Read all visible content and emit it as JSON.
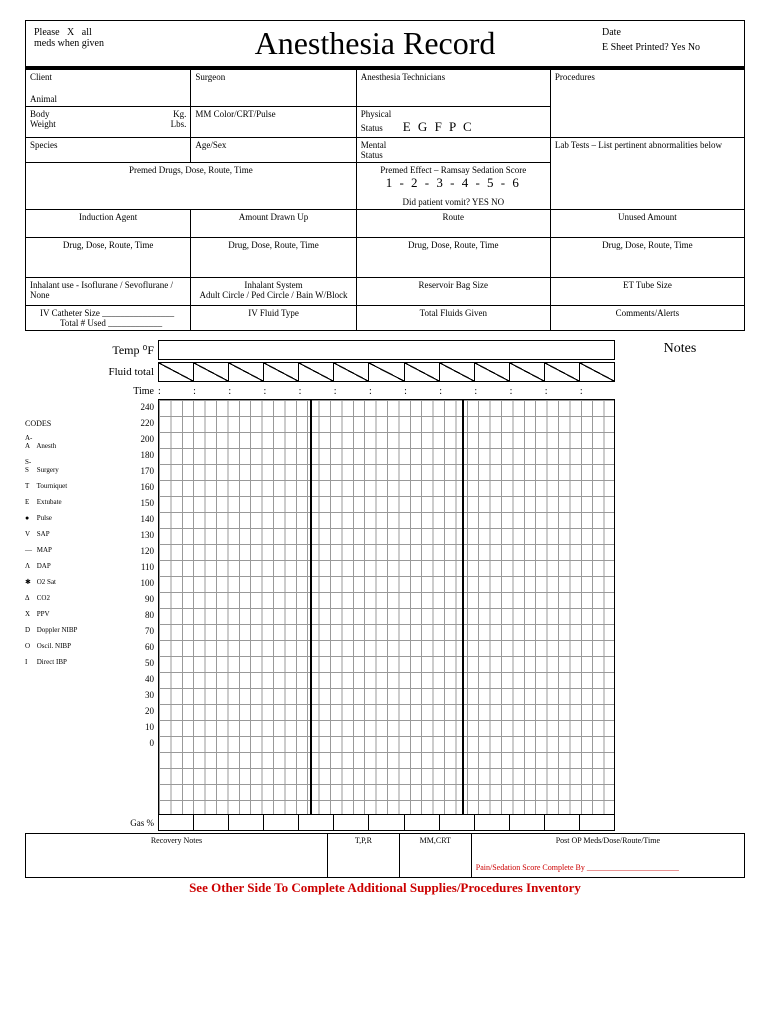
{
  "header": {
    "instruction1": "Please",
    "instruction2": "X",
    "instruction3": "all",
    "instruction4": "meds when given",
    "title": "Anesthesia Record",
    "date": "Date",
    "printed": "E Sheet Printed?  Yes  No"
  },
  "row1": {
    "client": "Client",
    "animal": "Animal",
    "surgeon": "Surgeon",
    "anesth_tech": "Anesthesia Technicians",
    "procedures": "Procedures"
  },
  "row2": {
    "body": "Body",
    "weight": "Weight",
    "kg": "Kg.",
    "lbs": "Lbs.",
    "mm": "MM Color/CRT/Pulse",
    "phys": "Physical",
    "status": "Status",
    "egfpc": "E G F P C"
  },
  "row3": {
    "species": "Species",
    "agesex": "Age/Sex",
    "mental": "Mental",
    "status": "Status",
    "labtests": "Lab Tests – List pertinent abnormalities below"
  },
  "row4": {
    "premed": "Premed Drugs, Dose, Route, Time",
    "effect": "Premed Effect – Ramsay Sedation Score",
    "scale": "1 - 2 - 3 - 4 - 5 - 6",
    "vomit": "Did patient vomit?   YES   NO"
  },
  "row5": {
    "induction": "Induction Agent",
    "amount": "Amount Drawn Up",
    "route": "Route",
    "unused": "Unused Amount"
  },
  "row6": {
    "drug": "Drug, Dose, Route, Time"
  },
  "row7": {
    "inhalant": "Inhalant use - Isoflurane / Sevoflurane / None",
    "system": "Inhalant System",
    "system2": "Adult Circle / Ped Circle / Bain W/Block",
    "reservoir": "Reservoir Bag Size",
    "et": "ET Tube Size"
  },
  "row8": {
    "iv_cath": "IV Catheter Size ________________",
    "total_used": "Total # Used ____________",
    "fluid_type": "IV Fluid Type",
    "fluids_given": "Total Fluids Given",
    "comments": "Comments/Alerts"
  },
  "monitor": {
    "temp": "Temp ⁰F",
    "fluid": "Fluid total",
    "time": "Time",
    "gas": "Gas %",
    "notes": "Notes",
    "yvals": [
      "240",
      "220",
      "200",
      "180",
      "170",
      "160",
      "150",
      "140",
      "130",
      "120",
      "110",
      "100",
      "90",
      "80",
      "70",
      "60",
      "50",
      "40",
      "30",
      "20",
      "10",
      "0"
    ],
    "y_heights": [
      16,
      16,
      16,
      16,
      16,
      16,
      16,
      16,
      16,
      16,
      16,
      16,
      16,
      16,
      16,
      16,
      16,
      16,
      16,
      16,
      16,
      16
    ]
  },
  "codes": {
    "title": "CODES",
    "items": [
      {
        "sym": "A-A",
        "txt": "Anesth"
      },
      {
        "sym": "S-S",
        "txt": "Surgery"
      },
      {
        "sym": "T",
        "txt": "Tourniquet"
      },
      {
        "sym": "E",
        "txt": "Extubate"
      },
      {
        "sym": "●",
        "txt": "Pulse"
      },
      {
        "sym": "V",
        "txt": "SAP"
      },
      {
        "sym": "—",
        "txt": "MAP"
      },
      {
        "sym": "Λ",
        "txt": "DAP"
      },
      {
        "sym": "✱",
        "txt": "O2 Sat"
      },
      {
        "sym": "Δ",
        "txt": "CO2"
      },
      {
        "sym": "X",
        "txt": "PPV"
      },
      {
        "sym": "D",
        "txt": "Doppler NIBP"
      },
      {
        "sym": "O",
        "txt": "Oscil. NIBP"
      },
      {
        "sym": "I",
        "txt": "Direct IBP"
      }
    ]
  },
  "footer": {
    "recovery": "Recovery Notes",
    "tpr": "T,P,R",
    "mmcrt": "MM,CRT",
    "postop": "Post OP Meds/Dose/Route/Time",
    "pain": "Pain/Sedation Score Complete By _______________________"
  },
  "bottom": "See Other Side To Complete Additional Supplies/Procedures Inventory"
}
